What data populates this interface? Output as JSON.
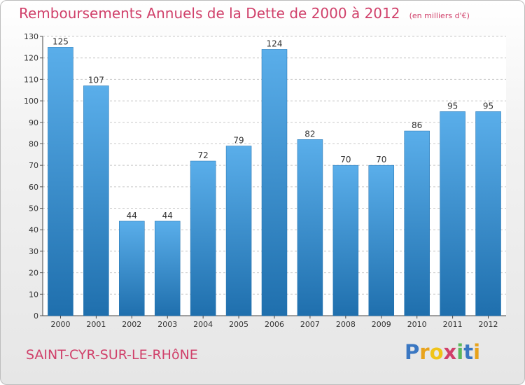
{
  "title": "Remboursements Annuels de la Dette de 2000 à 2012",
  "subtitle": "(en milliers d'€)",
  "commune": "SAINT-CYR-SUR-LE-RHôNE",
  "brand": {
    "letters": [
      "P",
      "r",
      "o",
      "x",
      "i",
      "t",
      "i"
    ],
    "colors": [
      "#3a77c2",
      "#e8a31c",
      "#f0c419",
      "#d0406a",
      "#5cb85c",
      "#3a77c2",
      "#e8a31c"
    ]
  },
  "colors": {
    "bar_top": "#5aaeea",
    "bar_bottom": "#1f6fad",
    "title": "#d0406a",
    "grid": "#c8c8c8"
  },
  "chart_data": {
    "type": "bar",
    "title": "Remboursements Annuels de la Dette de 2000 à 2012",
    "subtitle": "(en milliers d'€)",
    "categories": [
      "2000",
      "2001",
      "2002",
      "2003",
      "2004",
      "2005",
      "2006",
      "2007",
      "2008",
      "2009",
      "2010",
      "2011",
      "2012"
    ],
    "values": [
      125,
      107,
      44,
      44,
      72,
      79,
      124,
      82,
      70,
      70,
      86,
      95,
      95
    ],
    "ylim": [
      0,
      130
    ],
    "yticks": [
      0,
      10,
      20,
      30,
      40,
      50,
      60,
      70,
      80,
      90,
      100,
      110,
      120,
      130
    ],
    "grid": "horizontal-dashed",
    "data_labels": true
  }
}
